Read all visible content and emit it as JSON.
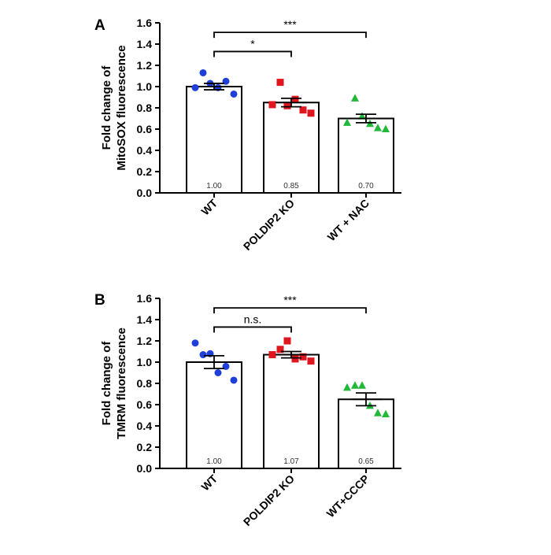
{
  "chart_data": [
    {
      "type": "bar",
      "panel_label": "A",
      "ylabel_lines": [
        "Fold change of",
        "MitoSOX fluorescence"
      ],
      "ylim": [
        0,
        1.6
      ],
      "yticks": [
        0.0,
        0.2,
        0.4,
        0.6,
        0.8,
        1.0,
        1.2,
        1.4,
        1.6
      ],
      "categories": [
        "WT",
        "POLDIP2 KO",
        "WT + NAC"
      ],
      "values": [
        1.0,
        0.85,
        0.7
      ],
      "value_labels": [
        "1.00",
        "0.85",
        "0.70"
      ],
      "sem": [
        0.03,
        0.04,
        0.04
      ],
      "points": [
        {
          "category": "WT",
          "marker": "circle",
          "color": "#1f3fdb",
          "y": [
            0.99,
            1.13,
            1.03,
            0.99,
            1.05,
            0.93
          ]
        },
        {
          "category": "POLDIP2 KO",
          "marker": "square",
          "color": "#e0161e",
          "y": [
            0.83,
            1.04,
            0.82,
            0.88,
            0.78,
            0.75
          ]
        },
        {
          "category": "WT + NAC",
          "marker": "triangle",
          "color": "#22b83a",
          "y": [
            0.66,
            0.89,
            0.72,
            0.65,
            0.61,
            0.6
          ]
        }
      ],
      "comparisons": [
        {
          "from": "WT",
          "to": "POLDIP2 KO",
          "label": "*",
          "y": 1.33
        },
        {
          "from": "WT",
          "to": "WT + NAC",
          "label": "***",
          "y": 1.51
        }
      ]
    },
    {
      "type": "bar",
      "panel_label": "B",
      "ylabel_lines": [
        "Fold change of",
        "TMRM fluorescence"
      ],
      "ylim": [
        0,
        1.6
      ],
      "yticks": [
        0.0,
        0.2,
        0.4,
        0.6,
        0.8,
        1.0,
        1.2,
        1.4,
        1.6
      ],
      "categories": [
        "WT",
        "POLDIP2 KO",
        "WT+CCCP"
      ],
      "values": [
        1.0,
        1.07,
        0.65
      ],
      "value_labels": [
        "1.00",
        "1.07",
        "0.65"
      ],
      "sem": [
        0.06,
        0.03,
        0.06
      ],
      "points": [
        {
          "category": "WT",
          "marker": "circle",
          "color": "#1f3fdb",
          "y": [
            1.18,
            1.07,
            1.08,
            0.9,
            0.96,
            0.83
          ]
        },
        {
          "category": "POLDIP2 KO",
          "marker": "square",
          "color": "#e0161e",
          "y": [
            1.07,
            1.12,
            1.2,
            1.03,
            1.05,
            1.01
          ]
        },
        {
          "category": "WT+CCCP",
          "marker": "triangle",
          "color": "#22b83a",
          "y": [
            0.76,
            0.78,
            0.78,
            0.59,
            0.52,
            0.51
          ]
        }
      ],
      "comparisons": [
        {
          "from": "WT",
          "to": "POLDIP2 KO",
          "label": "n.s.",
          "y": 1.33
        },
        {
          "from": "WT",
          "to": "WT+CCCP",
          "label": "***",
          "y": 1.51
        }
      ]
    }
  ]
}
